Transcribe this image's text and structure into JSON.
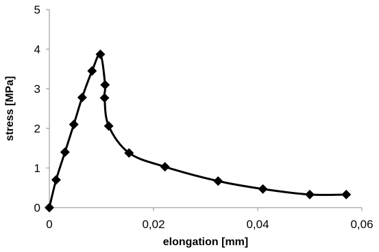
{
  "chart_data": {
    "type": "line",
    "title": "",
    "xlabel": "elongation [mm]",
    "ylabel": "stress [MPa]",
    "xlim": [
      0,
      0.06
    ],
    "ylim": [
      0,
      5
    ],
    "x_ticks": [
      "0",
      "0,02",
      "0,04",
      "0,06"
    ],
    "y_ticks": [
      "0",
      "1",
      "2",
      "3",
      "4",
      "5"
    ],
    "grid": false,
    "legend": "none",
    "series": [
      {
        "marker": "diamond",
        "smooth": true,
        "color": "#000000",
        "points": [
          {
            "x": 0.0,
            "y": 0.0
          },
          {
            "x": 0.0013,
            "y": 0.7
          },
          {
            "x": 0.003,
            "y": 1.4
          },
          {
            "x": 0.0047,
            "y": 2.1
          },
          {
            "x": 0.0063,
            "y": 2.78
          },
          {
            "x": 0.0082,
            "y": 3.45
          },
          {
            "x": 0.0098,
            "y": 3.87
          },
          {
            "x": 0.0107,
            "y": 3.1
          },
          {
            "x": 0.0106,
            "y": 2.77
          },
          {
            "x": 0.0114,
            "y": 2.06
          },
          {
            "x": 0.0153,
            "y": 1.38
          },
          {
            "x": 0.0222,
            "y": 1.03
          },
          {
            "x": 0.0324,
            "y": 0.67
          },
          {
            "x": 0.041,
            "y": 0.47
          },
          {
            "x": 0.05,
            "y": 0.33
          },
          {
            "x": 0.057,
            "y": 0.33
          }
        ]
      }
    ]
  }
}
